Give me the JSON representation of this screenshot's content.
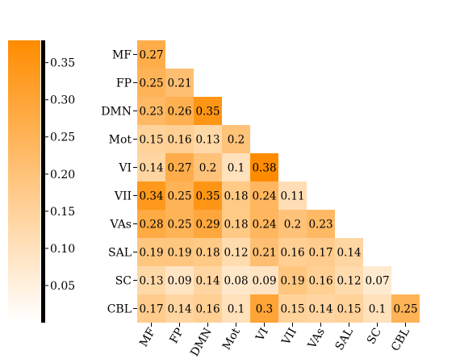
{
  "chart_data": {
    "type": "heatmap",
    "title": "",
    "xlabel": "",
    "ylabel": "",
    "labels": [
      "MF",
      "FP",
      "DMN",
      "Mot",
      "VI",
      "VII",
      "VAs",
      "SAL",
      "SC",
      "CBL"
    ],
    "lower_triangle_values": [
      [
        0.27
      ],
      [
        0.25,
        0.21
      ],
      [
        0.23,
        0.26,
        0.35
      ],
      [
        0.15,
        0.16,
        0.13,
        0.2
      ],
      [
        0.14,
        0.27,
        0.2,
        0.1,
        0.38
      ],
      [
        0.34,
        0.25,
        0.35,
        0.18,
        0.24,
        0.11
      ],
      [
        0.28,
        0.25,
        0.29,
        0.18,
        0.24,
        0.2,
        0.23
      ],
      [
        0.19,
        0.19,
        0.18,
        0.12,
        0.21,
        0.16,
        0.17,
        0.14
      ],
      [
        0.13,
        0.09,
        0.14,
        0.08,
        0.09,
        0.19,
        0.16,
        0.12,
        0.07
      ],
      [
        0.17,
        0.14,
        0.16,
        0.1,
        0.3,
        0.15,
        0.14,
        0.15,
        0.1,
        0.25
      ]
    ],
    "colorbar": {
      "range": [
        0.0,
        0.38
      ],
      "ticks": [
        "0.05",
        "0.10",
        "0.15",
        "0.20",
        "0.25",
        "0.30",
        "0.35"
      ],
      "location": "left"
    },
    "colormap": {
      "low": "#ffffff",
      "high": "#ff8c00"
    }
  }
}
